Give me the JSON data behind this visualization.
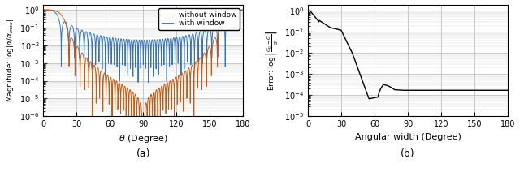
{
  "fig_width": 6.4,
  "fig_height": 2.12,
  "dpi": 100,
  "subplot_a": {
    "xlabel": "$\\theta$ (Degree)",
    "ylabel": "Magnitude: $\\log|\\alpha/\\alpha_{max}|$",
    "xlim": [
      0,
      180
    ],
    "ylim_log": [
      1e-06,
      2
    ],
    "xticks": [
      0,
      30,
      60,
      90,
      120,
      150,
      180
    ],
    "label_a": "(a)",
    "legend_without": "without window",
    "legend_with": "with window",
    "color_without": "#3674B5",
    "color_with": "#C55A11"
  },
  "subplot_b": {
    "xlabel": "Angular width (Degree)",
    "ylabel": "Error: $\\log\\left|\\frac{G_0 - G}{G}\\right|$",
    "xlim": [
      0,
      180
    ],
    "ylim_log": [
      1e-05,
      2
    ],
    "xticks": [
      0,
      30,
      60,
      90,
      120,
      150,
      180
    ],
    "label_b": "(b)",
    "color": "#000000"
  }
}
